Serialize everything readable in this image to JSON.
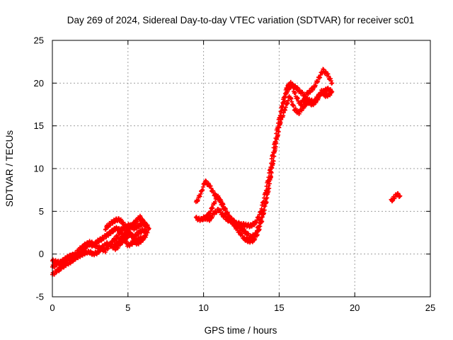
{
  "chart_data": {
    "type": "scatter",
    "title": "Day 269 of 2024, Sidereal Day-to-day VTEC variation (SDTVAR) for receiver sc01",
    "xlabel": "GPS time / hours",
    "ylabel": "SDTVAR / TECUs",
    "xlim": [
      0,
      25
    ],
    "ylim": [
      -5,
      25
    ],
    "xticks": [
      0,
      5,
      10,
      15,
      20,
      25
    ],
    "yticks": [
      -5,
      0,
      5,
      10,
      15,
      20,
      25
    ],
    "grid": true,
    "marker": "+",
    "color": "#ff0000",
    "series": [
      {
        "name": "SDTVAR",
        "tracks": [
          {
            "x": [
              0.0,
              0.3,
              0.6,
              0.9,
              1.2,
              1.5,
              1.8,
              2.1,
              2.4,
              2.7,
              3.0,
              3.3,
              3.6,
              3.9,
              4.2,
              4.5,
              4.8,
              5.1,
              5.4,
              5.7,
              6.0,
              6.3
            ],
            "y": [
              -1.5,
              -1.2,
              -1.0,
              -0.6,
              -0.2,
              -0.3,
              0.2,
              0.6,
              1.2,
              1.0,
              1.5,
              1.8,
              2.2,
              2.6,
              3.0,
              2.8,
              3.1,
              3.4,
              3.0,
              3.3,
              3.6,
              3.2
            ]
          },
          {
            "x": [
              0.0,
              0.3,
              0.6,
              0.9,
              1.2,
              1.5,
              1.8,
              2.1,
              2.4,
              2.7,
              3.0,
              3.3,
              3.6,
              3.9,
              4.2,
              4.5,
              4.8,
              5.1,
              5.4,
              5.7,
              6.0,
              6.3
            ],
            "y": [
              -2.4,
              -2.0,
              -1.6,
              -1.2,
              -0.9,
              -0.5,
              -0.2,
              0.1,
              0.3,
              0.0,
              0.2,
              0.8,
              1.2,
              1.0,
              0.6,
              1.2,
              1.8,
              2.3,
              2.0,
              2.5,
              2.8,
              2.5
            ]
          },
          {
            "x": [
              0.0,
              0.5,
              1.0,
              1.5,
              2.0,
              2.5,
              3.0,
              3.5,
              4.0,
              4.5,
              5.0,
              5.5,
              6.0
            ],
            "y": [
              -0.8,
              -1.0,
              -0.4,
              0.0,
              0.9,
              1.4,
              0.8,
              0.4,
              1.5,
              2.5,
              1.0,
              1.5,
              2.0
            ]
          },
          {
            "x": [
              3.5,
              3.8,
              4.1,
              4.4,
              4.7,
              5.0,
              5.3,
              5.6,
              5.9,
              6.2
            ],
            "y": [
              3.0,
              3.5,
              3.9,
              4.1,
              3.6,
              2.8,
              2.0,
              1.2,
              1.6,
              2.2
            ]
          },
          {
            "x": [
              4.0,
              4.3,
              4.6,
              4.9,
              5.2,
              5.5,
              5.8,
              6.1,
              6.4
            ],
            "y": [
              0.8,
              1.4,
              2.0,
              2.6,
              3.2,
              3.8,
              4.3,
              3.6,
              3.0
            ]
          },
          {
            "x": [
              9.5,
              9.8,
              10.1,
              10.4,
              10.7,
              11.0,
              11.3,
              11.6,
              11.9,
              12.2,
              12.5,
              12.8,
              13.1,
              13.4,
              13.7,
              14.0,
              14.3,
              14.6,
              14.9,
              15.2,
              15.5,
              15.8,
              16.1,
              16.4,
              16.7,
              17.0,
              17.3,
              17.6,
              17.9,
              18.2,
              18.5
            ],
            "y": [
              4.2,
              4.0,
              4.3,
              4.0,
              4.8,
              5.2,
              4.5,
              4.0,
              3.8,
              3.6,
              3.5,
              3.4,
              3.3,
              3.6,
              4.5,
              6.5,
              9.0,
              12.0,
              15.0,
              17.5,
              19.5,
              20.0,
              18.5,
              17.5,
              18.2,
              18.0,
              17.8,
              18.5,
              19.0,
              19.3,
              19.0
            ]
          },
          {
            "x": [
              9.5,
              9.8,
              10.1,
              10.4,
              10.7,
              11.0,
              11.3,
              11.6,
              11.9,
              12.2,
              12.5,
              12.8,
              13.1,
              13.4,
              13.7,
              14.0,
              14.3,
              14.6,
              14.9,
              15.2,
              15.5,
              15.8,
              16.1,
              16.4,
              16.7,
              17.0,
              17.3,
              17.6,
              17.9,
              18.2,
              18.5
            ],
            "y": [
              6.0,
              7.0,
              8.5,
              8.0,
              7.0,
              6.5,
              5.5,
              4.5,
              4.0,
              3.5,
              3.0,
              2.5,
              2.0,
              2.2,
              3.5,
              5.5,
              8.0,
              11.0,
              14.0,
              17.0,
              19.0,
              19.8,
              19.5,
              19.0,
              18.5,
              19.0,
              19.5,
              20.5,
              21.5,
              21.0,
              20.0
            ]
          },
          {
            "x": [
              10.0,
              10.3,
              10.6,
              10.9,
              11.2,
              11.5,
              11.8,
              12.1,
              12.4,
              12.7,
              13.0,
              13.3,
              13.6,
              13.9,
              14.2,
              14.5,
              14.8,
              15.1,
              15.4,
              15.7,
              16.0,
              16.3,
              16.6,
              16.9,
              17.2,
              17.5,
              17.8,
              18.1,
              18.4
            ],
            "y": [
              4.0,
              4.5,
              5.5,
              6.8,
              6.0,
              5.0,
              4.0,
              3.2,
              2.5,
              1.8,
              1.5,
              1.6,
              2.5,
              4.2,
              6.5,
              9.5,
              13.0,
              15.5,
              17.0,
              18.5,
              17.0,
              16.5,
              17.2,
              17.8,
              17.5,
              18.0,
              19.0,
              18.5,
              18.8
            ]
          },
          {
            "x": [
              22.4,
              22.6,
              22.8,
              23.0
            ],
            "y": [
              6.2,
              6.6,
              7.0,
              6.8
            ]
          }
        ]
      }
    ]
  }
}
